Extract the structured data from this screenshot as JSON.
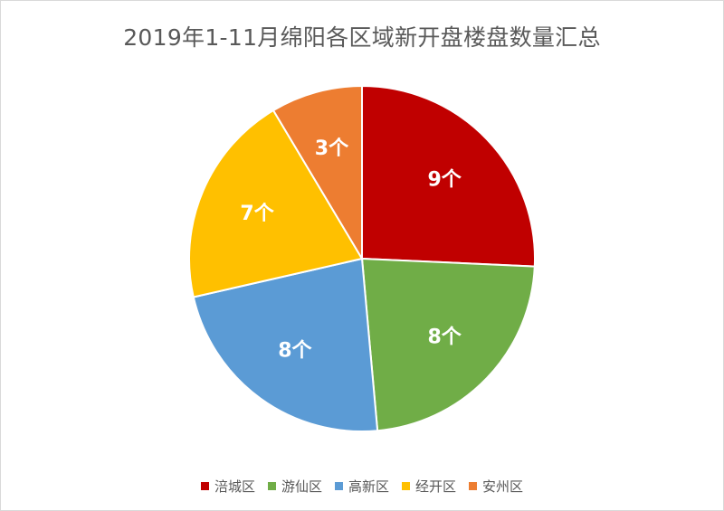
{
  "chart_data": {
    "type": "pie",
    "title": "2019年1-11月绵阳各区域新开盘楼盘数量汇总",
    "unit_suffix": "个",
    "slices": [
      {
        "name": "涪城区",
        "value": 9,
        "color": "#c00000"
      },
      {
        "name": "游仙区",
        "value": 8,
        "color": "#70ad47"
      },
      {
        "name": "高新区",
        "value": 8,
        "color": "#5b9bd5"
      },
      {
        "name": "经开区",
        "value": 7,
        "color": "#ffc000"
      },
      {
        "name": "安州区",
        "value": 3,
        "color": "#ed7d31"
      }
    ],
    "legend_position": "bottom"
  }
}
